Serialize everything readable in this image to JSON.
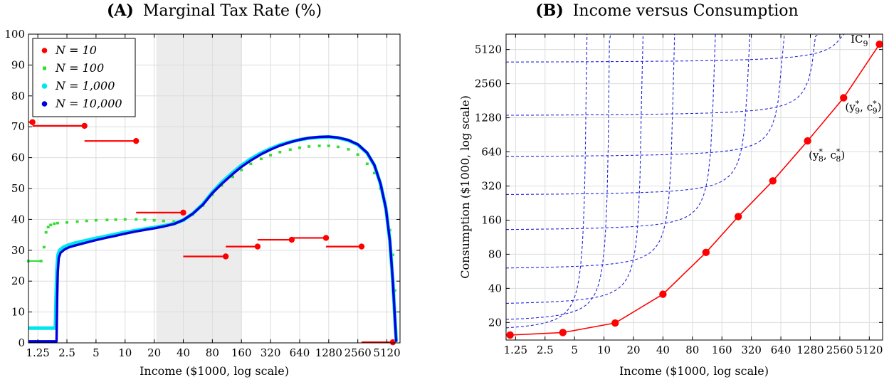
{
  "chart_data": [
    {
      "type": "scatter",
      "panel_letter": "(A)",
      "title": "Marginal Tax Rate (%)",
      "xlabel": "Income ($1000, log scale)",
      "ylabel": "",
      "xscale": "log2",
      "xlim": [
        1.0,
        7000
      ],
      "ylim": [
        0,
        100
      ],
      "xticks": [
        1.25,
        2.5,
        5,
        10,
        20,
        40,
        80,
        160,
        320,
        640,
        1280,
        2560,
        5120
      ],
      "xtick_labels": [
        "1.25",
        "2.5",
        "5",
        "10",
        "20",
        "40",
        "80",
        "160",
        "320",
        "640",
        "1280",
        "2560",
        "5120"
      ],
      "yticks": [
        0,
        10,
        20,
        30,
        40,
        50,
        60,
        70,
        80,
        90,
        100
      ],
      "ytick_labels": [
        "0",
        "10",
        "20",
        "30",
        "40",
        "50",
        "60",
        "70",
        "80",
        "90",
        "100"
      ],
      "grid": true,
      "legend_position": "top-left",
      "shaded_region": {
        "x": [
          21,
          160
        ],
        "color": "#ececec"
      },
      "legend": [
        {
          "label": "N = 10",
          "color": "#ff0000",
          "marker": "dot"
        },
        {
          "label": "N = 100",
          "color": "#33dd33",
          "marker": "square"
        },
        {
          "label": "N = 1,000",
          "color": "#00e5ee",
          "marker": "dot"
        },
        {
          "label": "N = 10,000",
          "color": "#0000dd",
          "marker": "dot"
        }
      ],
      "series": [
        {
          "name": "N = 10",
          "color": "#ff0000",
          "style": "steps",
          "segments": [
            {
              "x0": 1.0,
              "x1": 1.1,
              "y": 71.5
            },
            {
              "x0": 1.1,
              "x1": 3.8,
              "y": 70.3
            },
            {
              "x0": 3.8,
              "x1": 13,
              "y": 65.4
            },
            {
              "x0": 13,
              "x1": 40,
              "y": 42.2
            },
            {
              "x0": 40,
              "x1": 110,
              "y": 28.0
            },
            {
              "x0": 110,
              "x1": 235,
              "y": 31.2
            },
            {
              "x0": 235,
              "x1": 530,
              "y": 33.4
            },
            {
              "x0": 530,
              "x1": 1200,
              "y": 34.0
            },
            {
              "x0": 1200,
              "x1": 2800,
              "y": 31.2
            },
            {
              "x0": 2800,
              "x1": 5900,
              "y": 0.2
            }
          ]
        },
        {
          "name": "N = 100",
          "color": "#33dd33",
          "points": [
            [
              1.0,
              26.5
            ],
            [
              1.35,
              26.5
            ],
            [
              1.45,
              31.0
            ],
            [
              1.52,
              35.8
            ],
            [
              1.6,
              37.5
            ],
            [
              1.7,
              38.2
            ],
            [
              1.85,
              38.6
            ],
            [
              2.0,
              38.8
            ],
            [
              2.5,
              39.0
            ],
            [
              3.2,
              39.3
            ],
            [
              4,
              39.5
            ],
            [
              5,
              39.7
            ],
            [
              6.5,
              39.8
            ],
            [
              8,
              39.9
            ],
            [
              10,
              40.0
            ],
            [
              13,
              40.0
            ],
            [
              16,
              39.9
            ],
            [
              20,
              39.7
            ],
            [
              25,
              39.5
            ],
            [
              32,
              39.3
            ],
            [
              40,
              39.6
            ],
            [
              50,
              41.5
            ],
            [
              64,
              44.5
            ],
            [
              80,
              48.0
            ],
            [
              100,
              51.0
            ],
            [
              130,
              53.8
            ],
            [
              160,
              56.0
            ],
            [
              200,
              58.0
            ],
            [
              256,
              59.6
            ],
            [
              320,
              60.8
            ],
            [
              400,
              61.8
            ],
            [
              512,
              62.6
            ],
            [
              640,
              63.2
            ],
            [
              800,
              63.6
            ],
            [
              1024,
              63.8
            ],
            [
              1280,
              63.8
            ],
            [
              1600,
              63.5
            ],
            [
              2048,
              62.7
            ],
            [
              2560,
              61.0
            ],
            [
              3200,
              58.0
            ],
            [
              3800,
              55.0
            ],
            [
              4400,
              50.0
            ],
            [
              5000,
              43.0
            ],
            [
              5500,
              36.5
            ],
            [
              5900,
              28.5
            ],
            [
              6200,
              17.0
            ]
          ]
        },
        {
          "name": "N = 1,000",
          "color": "#00e5ee",
          "points": [
            [
              1.0,
              4.8
            ],
            [
              1.9,
              4.8
            ],
            [
              1.93,
              15.0
            ],
            [
              1.97,
              24.0
            ],
            [
              2.02,
              28.5
            ],
            [
              2.1,
              30.0
            ],
            [
              2.3,
              31.0
            ],
            [
              2.6,
              31.7
            ],
            [
              3,
              32.3
            ],
            [
              4,
              33.2
            ],
            [
              5,
              33.9
            ],
            [
              6.5,
              34.6
            ],
            [
              8,
              35.2
            ],
            [
              10,
              35.8
            ],
            [
              13,
              36.4
            ],
            [
              16,
              36.9
            ],
            [
              20,
              37.4
            ],
            [
              25,
              37.9
            ],
            [
              32,
              38.6
            ],
            [
              40,
              39.8
            ],
            [
              50,
              41.8
            ],
            [
              64,
              45.0
            ],
            [
              80,
              48.8
            ],
            [
              100,
              52.0
            ],
            [
              130,
              55.2
            ],
            [
              160,
              57.5
            ],
            [
              200,
              59.6
            ],
            [
              256,
              61.5
            ],
            [
              320,
              62.9
            ],
            [
              400,
              64.1
            ],
            [
              512,
              65.1
            ],
            [
              640,
              65.8
            ],
            [
              800,
              66.3
            ],
            [
              1024,
              66.6
            ],
            [
              1280,
              66.7
            ],
            [
              1600,
              66.4
            ],
            [
              2048,
              65.6
            ],
            [
              2560,
              64.2
            ],
            [
              3200,
              61.5
            ],
            [
              3800,
              57.5
            ],
            [
              4400,
              51.5
            ],
            [
              5000,
              43.5
            ],
            [
              5500,
              33.0
            ],
            [
              5900,
              20.0
            ],
            [
              6200,
              8.0
            ],
            [
              6400,
              0.5
            ]
          ]
        },
        {
          "name": "N = 10,000",
          "color": "#0000dd",
          "points": [
            [
              1.0,
              0.5
            ],
            [
              1.95,
              0.5
            ],
            [
              1.98,
              14.0
            ],
            [
              2.01,
              23.0
            ],
            [
              2.06,
              27.5
            ],
            [
              2.15,
              29.2
            ],
            [
              2.35,
              30.2
            ],
            [
              2.6,
              30.9
            ],
            [
              3,
              31.5
            ],
            [
              4,
              32.5
            ],
            [
              5,
              33.3
            ],
            [
              6.5,
              34.1
            ],
            [
              8,
              34.7
            ],
            [
              10,
              35.4
            ],
            [
              13,
              36.1
            ],
            [
              16,
              36.6
            ],
            [
              20,
              37.1
            ],
            [
              25,
              37.7
            ],
            [
              32,
              38.5
            ],
            [
              40,
              39.8
            ],
            [
              50,
              41.8
            ],
            [
              64,
              44.8
            ],
            [
              80,
              48.5
            ],
            [
              100,
              51.5
            ],
            [
              130,
              54.7
            ],
            [
              160,
              57.0
            ],
            [
              200,
              59.1
            ],
            [
              256,
              61.1
            ],
            [
              320,
              62.6
            ],
            [
              400,
              63.9
            ],
            [
              512,
              65.0
            ],
            [
              640,
              65.8
            ],
            [
              800,
              66.4
            ],
            [
              1024,
              66.7
            ],
            [
              1280,
              66.8
            ],
            [
              1600,
              66.5
            ],
            [
              2048,
              65.7
            ],
            [
              2560,
              64.3
            ],
            [
              3200,
              61.6
            ],
            [
              3800,
              57.6
            ],
            [
              4400,
              51.6
            ],
            [
              5000,
              43.5
            ],
            [
              5500,
              33.0
            ],
            [
              5900,
              20.0
            ],
            [
              6200,
              8.0
            ],
            [
              6400,
              0.3
            ]
          ]
        }
      ]
    },
    {
      "type": "line",
      "panel_letter": "(B)",
      "title": "Income versus Consumption",
      "xlabel": "Income ($1000, log scale)",
      "ylabel": "Consumption ($1000, log scale)",
      "xscale": "log2",
      "yscale": "log2",
      "xlim": [
        1.0,
        7000
      ],
      "ylim": [
        14,
        7000
      ],
      "xticks": [
        1.25,
        2.5,
        5,
        10,
        20,
        40,
        80,
        160,
        320,
        640,
        1280,
        2560,
        5120
      ],
      "xtick_labels": [
        "1.25",
        "2.5",
        "5",
        "10",
        "20",
        "40",
        "80",
        "160",
        "320",
        "640",
        "1280",
        "2560",
        "5120"
      ],
      "yticks": [
        20,
        40,
        80,
        160,
        320,
        640,
        1280,
        2560,
        5120
      ],
      "ytick_labels": [
        "20",
        "40",
        "80",
        "160",
        "320",
        "640",
        "1280",
        "2560",
        "5120"
      ],
      "grid": true,
      "points_color": "#ff0000",
      "ic_color": "#2222dd",
      "points": [
        [
          1.1,
          15.5
        ],
        [
          3.8,
          16.3
        ],
        [
          13,
          19.8
        ],
        [
          40,
          35.5
        ],
        [
          110,
          83
        ],
        [
          235,
          172
        ],
        [
          530,
          355
        ],
        [
          1200,
          800
        ],
        [
          2800,
          1920
        ],
        [
          6500,
          5700
        ]
      ],
      "indifference_curves": [
        {
          "c_level": 16.3,
          "x_vertical": 7
        },
        {
          "c_level": 19.8,
          "x_vertical": 12
        },
        {
          "c_level": 28,
          "x_vertical": 26
        },
        {
          "c_level": 58,
          "x_vertical": 55
        },
        {
          "c_level": 128,
          "x_vertical": 145
        },
        {
          "c_level": 262,
          "x_vertical": 330
        },
        {
          "c_level": 570,
          "x_vertical": 750
        },
        {
          "c_level": 1320,
          "x_vertical": 1700
        },
        {
          "c_level": 3900,
          "x_vertical": 4100
        }
      ],
      "annotations": [
        {
          "label": "IC",
          "sub": "9",
          "sup": "",
          "x": 3300,
          "y": 5900
        },
        {
          "label": "(y",
          "sub": "9",
          "sup": "*",
          "after": ", c",
          "sub2": "9",
          "sup2": "*",
          "x": 2900,
          "y": 1480
        },
        {
          "label": "(y",
          "sub": "8",
          "sup": "*",
          "after": ", c",
          "sub2": "8",
          "sup2": "*",
          "x": 1230,
          "y": 560
        }
      ]
    }
  ]
}
